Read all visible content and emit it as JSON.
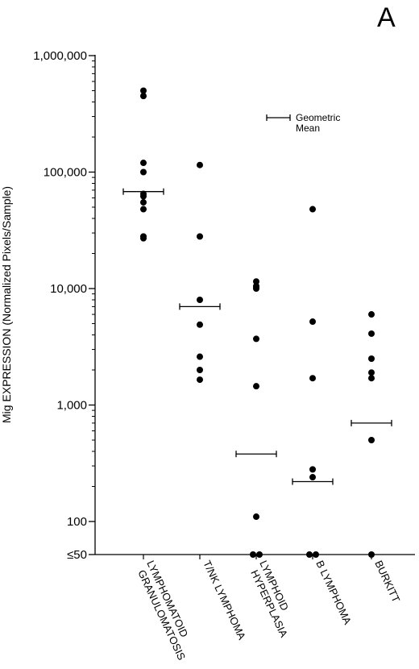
{
  "panel_label": "A",
  "chart_data": {
    "type": "scatter",
    "ylabel": "Mig EXPRESSION (Normalized Pixels/Sample)",
    "yscale": "log",
    "ylim": [
      50,
      1000000
    ],
    "yticks": [
      {
        "value": 50,
        "label": "≤50"
      },
      {
        "value": 100,
        "label": "100"
      },
      {
        "value": 1000,
        "label": "1,000"
      },
      {
        "value": 10000,
        "label": "10,000"
      },
      {
        "value": 100000,
        "label": "100,000"
      },
      {
        "value": 1000000,
        "label": "1,000,000"
      }
    ],
    "categories": [
      {
        "label_lines": [
          "LYMPHOMATOID",
          "GRANULOMATOSIS"
        ],
        "values": [
          500000,
          450000,
          120000,
          100000,
          65000,
          62000,
          55000,
          48000,
          28000,
          27000
        ],
        "geometric_mean": 68000
      },
      {
        "label_lines": [
          "T/NK LYMPHOMA"
        ],
        "values": [
          115000,
          28000,
          8000,
          4900,
          2600,
          2000,
          1650
        ],
        "geometric_mean": 7000
      },
      {
        "label_lines": [
          "LYMPHOID",
          "HYPERPLASIA"
        ],
        "values": [
          11500,
          10500,
          10200,
          10000,
          3700,
          1450,
          110,
          50,
          50
        ],
        "geometric_mean": 380
      },
      {
        "label_lines": [
          "B LYMPHOMA"
        ],
        "values": [
          48000,
          5200,
          1700,
          280,
          240,
          50,
          50
        ],
        "geometric_mean": 220
      },
      {
        "label_lines": [
          "BURKITT"
        ],
        "values": [
          6000,
          4100,
          2500,
          1900,
          1700,
          500,
          50
        ],
        "geometric_mean": 700
      }
    ],
    "legend": {
      "label_lines": [
        "Geometric",
        "Mean"
      ],
      "position": "top-right"
    },
    "grid": false
  }
}
